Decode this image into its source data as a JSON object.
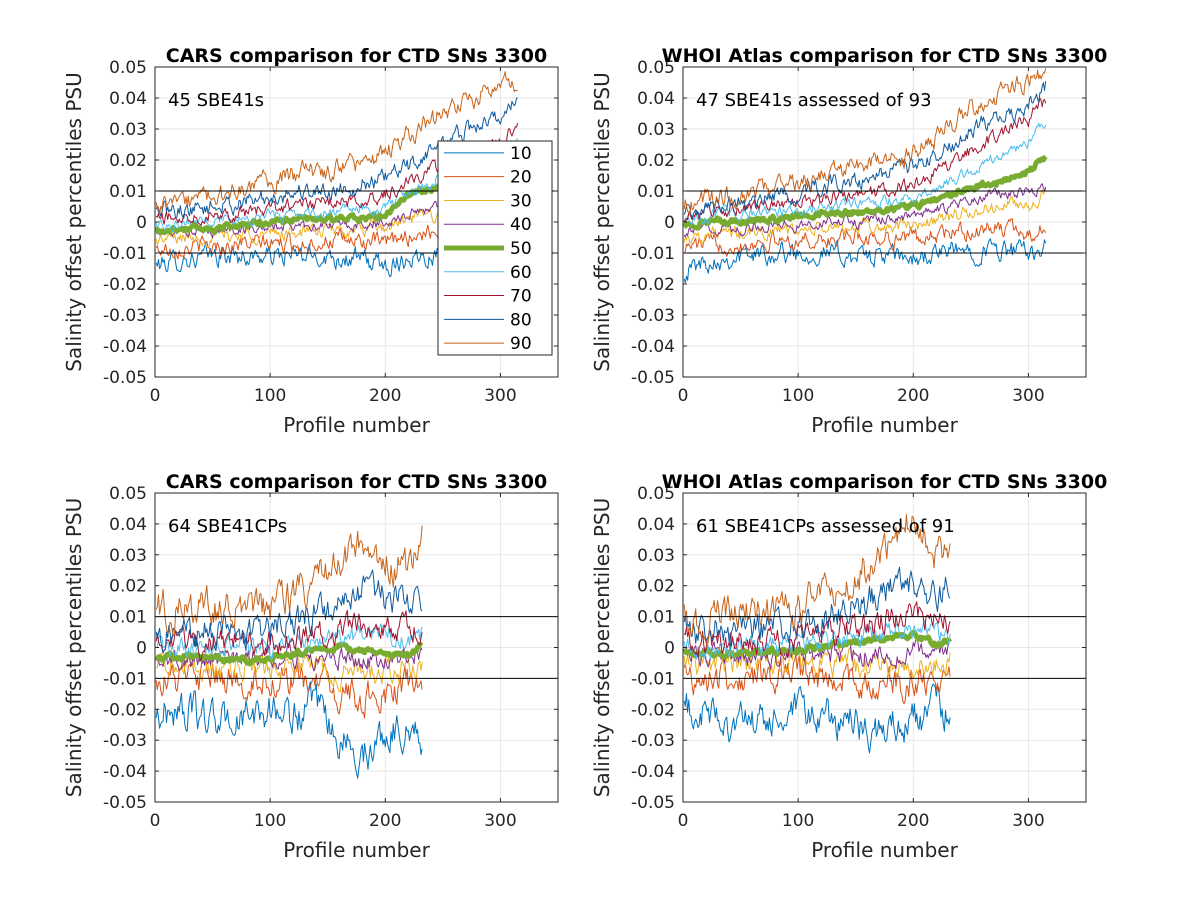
{
  "chart_data": [
    {
      "type": "line",
      "title": "CARS comparison for CTD SNs 3300",
      "xlabel": "Profile number",
      "ylabel": "Salinity offset percentiles PSU",
      "xlim": [
        0,
        350
      ],
      "ylim": [
        -0.05,
        0.05
      ],
      "xticks": [
        "0",
        "100",
        "200",
        "300"
      ],
      "yticks": [
        "-0.05",
        "-0.04",
        "-0.03",
        "-0.02",
        "-0.01",
        "0",
        "0.01",
        "0.02",
        "0.03",
        "0.04",
        "0.05"
      ],
      "reference_lines": [
        0.01,
        -0.01
      ],
      "annotation": "45 SBE41s",
      "grid": true,
      "legend": "right",
      "nprofiles": 315,
      "x": [
        0,
        25,
        50,
        75,
        100,
        125,
        150,
        175,
        200,
        225,
        250,
        275,
        300,
        315
      ],
      "series": [
        {
          "name": "10",
          "values": [
            -0.014,
            -0.012,
            -0.011,
            -0.011,
            -0.011,
            -0.011,
            -0.011,
            -0.012,
            -0.014,
            -0.011,
            -0.01,
            -0.009,
            -0.009,
            -0.009
          ]
        },
        {
          "name": "20",
          "values": [
            -0.009,
            -0.008,
            -0.008,
            -0.007,
            -0.007,
            -0.007,
            -0.006,
            -0.006,
            -0.007,
            -0.004,
            -0.003,
            -0.002,
            -0.002,
            -0.003
          ]
        },
        {
          "name": "30",
          "values": [
            -0.006,
            -0.005,
            -0.005,
            -0.004,
            -0.004,
            -0.003,
            -0.003,
            -0.003,
            -0.002,
            0.001,
            0.003,
            0.004,
            0.004,
            0.004
          ]
        },
        {
          "name": "40",
          "values": [
            -0.004,
            -0.003,
            -0.003,
            -0.002,
            -0.002,
            -0.001,
            -0.001,
            -0.001,
            0.0,
            0.003,
            0.006,
            0.008,
            0.009,
            0.009
          ]
        },
        {
          "name": "50",
          "values": [
            -0.003,
            -0.002,
            -0.002,
            -0.001,
            0.0,
            0.001,
            0.001,
            0.001,
            0.002,
            0.01,
            0.011,
            0.012,
            0.014,
            0.02
          ]
        },
        {
          "name": "60",
          "values": [
            -0.001,
            0.0,
            0.001,
            0.001,
            0.002,
            0.003,
            0.003,
            0.004,
            0.005,
            0.01,
            0.015,
            0.018,
            0.022,
            0.025
          ]
        },
        {
          "name": "70",
          "values": [
            0.001,
            0.002,
            0.003,
            0.003,
            0.004,
            0.006,
            0.006,
            0.007,
            0.009,
            0.014,
            0.018,
            0.022,
            0.026,
            0.032
          ]
        },
        {
          "name": "80",
          "values": [
            0.003,
            0.004,
            0.005,
            0.006,
            0.008,
            0.01,
            0.01,
            0.012,
            0.014,
            0.019,
            0.026,
            0.03,
            0.034,
            0.04
          ]
        },
        {
          "name": "90",
          "values": [
            0.005,
            0.006,
            0.008,
            0.01,
            0.013,
            0.016,
            0.016,
            0.019,
            0.022,
            0.029,
            0.035,
            0.04,
            0.044,
            0.046
          ]
        }
      ]
    },
    {
      "type": "line",
      "title": "WHOI Atlas comparison for CTD SNs 3300",
      "xlabel": "Profile number",
      "ylabel": "Salinity offset percentiles PSU",
      "xlim": [
        0,
        350
      ],
      "ylim": [
        -0.05,
        0.05
      ],
      "xticks": [
        "0",
        "100",
        "200",
        "300"
      ],
      "yticks": [
        "-0.05",
        "-0.04",
        "-0.03",
        "-0.02",
        "-0.01",
        "0",
        "0.01",
        "0.02",
        "0.03",
        "0.04",
        "0.05"
      ],
      "reference_lines": [
        0.01,
        -0.01
      ],
      "annotation": "47 SBE41s assessed of 93",
      "grid": true,
      "nprofiles": 315,
      "x": [
        0,
        25,
        50,
        75,
        100,
        125,
        150,
        175,
        200,
        225,
        250,
        275,
        300,
        315
      ],
      "series": [
        {
          "name": "10",
          "values": [
            -0.016,
            -0.012,
            -0.011,
            -0.01,
            -0.01,
            -0.01,
            -0.011,
            -0.011,
            -0.012,
            -0.01,
            -0.009,
            -0.009,
            -0.01,
            -0.007
          ]
        },
        {
          "name": "20",
          "values": [
            -0.008,
            -0.007,
            -0.007,
            -0.006,
            -0.006,
            -0.006,
            -0.005,
            -0.005,
            -0.005,
            -0.004,
            -0.003,
            -0.002,
            -0.004,
            -0.001
          ]
        },
        {
          "name": "30",
          "values": [
            -0.005,
            -0.004,
            -0.004,
            -0.003,
            -0.003,
            -0.002,
            -0.002,
            -0.002,
            -0.001,
            0.001,
            0.003,
            0.005,
            0.006,
            0.008
          ]
        },
        {
          "name": "40",
          "values": [
            -0.003,
            -0.002,
            -0.002,
            -0.001,
            -0.001,
            0.0,
            0.0,
            0.001,
            0.002,
            0.004,
            0.007,
            0.009,
            0.01,
            0.011
          ]
        },
        {
          "name": "50",
          "values": [
            -0.001,
            0.0,
            0.0,
            0.001,
            0.002,
            0.003,
            0.003,
            0.004,
            0.005,
            0.008,
            0.011,
            0.013,
            0.016,
            0.021
          ]
        },
        {
          "name": "60",
          "values": [
            0.001,
            0.002,
            0.003,
            0.003,
            0.004,
            0.005,
            0.006,
            0.007,
            0.008,
            0.012,
            0.017,
            0.021,
            0.026,
            0.033
          ]
        },
        {
          "name": "70",
          "values": [
            0.002,
            0.003,
            0.004,
            0.005,
            0.006,
            0.008,
            0.009,
            0.01,
            0.012,
            0.017,
            0.023,
            0.028,
            0.033,
            0.039
          ]
        },
        {
          "name": "80",
          "values": [
            0.004,
            0.005,
            0.006,
            0.008,
            0.01,
            0.012,
            0.013,
            0.015,
            0.018,
            0.023,
            0.029,
            0.034,
            0.038,
            0.044
          ]
        },
        {
          "name": "90",
          "values": [
            0.006,
            0.008,
            0.009,
            0.011,
            0.013,
            0.015,
            0.017,
            0.019,
            0.022,
            0.029,
            0.036,
            0.041,
            0.045,
            0.048
          ]
        }
      ]
    },
    {
      "type": "line",
      "title": "CARS comparison for CTD SNs 3300",
      "xlabel": "Profile number",
      "ylabel": "Salinity offset percentiles PSU",
      "xlim": [
        0,
        350
      ],
      "ylim": [
        -0.05,
        0.05
      ],
      "xticks": [
        "0",
        "100",
        "200",
        "300"
      ],
      "yticks": [
        "-0.05",
        "-0.04",
        "-0.03",
        "-0.02",
        "-0.01",
        "0",
        "0.01",
        "0.02",
        "0.03",
        "0.04",
        "0.05"
      ],
      "reference_lines": [
        0.01,
        -0.01
      ],
      "annotation": "64 SBE41CPs",
      "grid": true,
      "nprofiles": 232,
      "x": [
        0,
        20,
        40,
        60,
        80,
        100,
        120,
        140,
        160,
        180,
        200,
        220,
        232
      ],
      "series": [
        {
          "name": "10",
          "values": [
            -0.022,
            -0.02,
            -0.022,
            -0.024,
            -0.023,
            -0.02,
            -0.022,
            -0.02,
            -0.03,
            -0.035,
            -0.028,
            -0.025,
            -0.03
          ]
        },
        {
          "name": "20",
          "values": [
            -0.01,
            -0.01,
            -0.01,
            -0.011,
            -0.011,
            -0.01,
            -0.011,
            -0.011,
            -0.015,
            -0.017,
            -0.015,
            -0.012,
            -0.012
          ]
        },
        {
          "name": "30",
          "values": [
            -0.006,
            -0.006,
            -0.006,
            -0.006,
            -0.006,
            -0.006,
            -0.006,
            -0.006,
            -0.008,
            -0.009,
            -0.008,
            -0.007,
            -0.007
          ]
        },
        {
          "name": "40",
          "values": [
            -0.004,
            -0.004,
            -0.004,
            -0.004,
            -0.004,
            -0.003,
            -0.003,
            -0.003,
            -0.003,
            -0.004,
            -0.003,
            -0.003,
            -0.002
          ]
        },
        {
          "name": "50",
          "values": [
            -0.003,
            -0.003,
            -0.003,
            -0.004,
            -0.004,
            -0.003,
            -0.002,
            -0.001,
            0.0,
            -0.001,
            -0.002,
            -0.003,
            0.001
          ]
        },
        {
          "name": "60",
          "values": [
            0.0,
            0.0,
            0.0,
            0.0,
            0.0,
            0.0,
            0.001,
            0.002,
            0.003,
            0.004,
            0.004,
            0.003,
            0.004
          ]
        },
        {
          "name": "70",
          "values": [
            0.002,
            0.002,
            0.002,
            0.002,
            0.002,
            0.002,
            0.003,
            0.005,
            0.006,
            0.007,
            0.007,
            0.006,
            0.007
          ]
        },
        {
          "name": "80",
          "values": [
            0.005,
            0.005,
            0.005,
            0.005,
            0.005,
            0.006,
            0.008,
            0.01,
            0.014,
            0.018,
            0.016,
            0.015,
            0.017
          ]
        },
        {
          "name": "90",
          "values": [
            0.012,
            0.013,
            0.013,
            0.012,
            0.012,
            0.013,
            0.016,
            0.022,
            0.026,
            0.033,
            0.028,
            0.026,
            0.036
          ]
        }
      ]
    },
    {
      "type": "line",
      "title": "WHOI Atlas comparison for CTD SNs 3300",
      "xlabel": "Profile number",
      "ylabel": "Salinity offset percentiles PSU",
      "xlim": [
        0,
        350
      ],
      "ylim": [
        -0.05,
        0.05
      ],
      "xticks": [
        "0",
        "100",
        "200",
        "300"
      ],
      "yticks": [
        "-0.05",
        "-0.04",
        "-0.03",
        "-0.02",
        "-0.01",
        "0",
        "0.01",
        "0.02",
        "0.03",
        "0.04",
        "0.05"
      ],
      "reference_lines": [
        0.01,
        -0.01
      ],
      "annotation": "61 SBE41CPs assessed of 91",
      "grid": true,
      "nprofiles": 232,
      "x": [
        0,
        20,
        40,
        60,
        80,
        100,
        120,
        140,
        160,
        180,
        200,
        220,
        232
      ],
      "series": [
        {
          "name": "10",
          "values": [
            -0.02,
            -0.022,
            -0.024,
            -0.025,
            -0.024,
            -0.022,
            -0.023,
            -0.023,
            -0.028,
            -0.026,
            -0.024,
            -0.02,
            -0.021
          ]
        },
        {
          "name": "20",
          "values": [
            -0.009,
            -0.01,
            -0.01,
            -0.01,
            -0.01,
            -0.009,
            -0.01,
            -0.01,
            -0.012,
            -0.012,
            -0.011,
            -0.01,
            -0.009
          ]
        },
        {
          "name": "30",
          "values": [
            -0.005,
            -0.005,
            -0.005,
            -0.005,
            -0.005,
            -0.005,
            -0.005,
            -0.005,
            -0.006,
            -0.006,
            -0.005,
            -0.004,
            -0.004
          ]
        },
        {
          "name": "40",
          "values": [
            -0.003,
            -0.003,
            -0.003,
            -0.003,
            -0.003,
            -0.002,
            -0.002,
            -0.002,
            -0.002,
            -0.002,
            -0.001,
            -0.001,
            0.0
          ]
        },
        {
          "name": "50",
          "values": [
            -0.002,
            -0.002,
            -0.002,
            -0.002,
            -0.001,
            -0.001,
            0.0,
            0.001,
            0.002,
            0.003,
            0.004,
            0.001,
            0.002
          ]
        },
        {
          "name": "60",
          "values": [
            0.0,
            0.0,
            0.0,
            0.0,
            0.0,
            0.001,
            0.002,
            0.003,
            0.004,
            0.005,
            0.006,
            0.004,
            0.004
          ]
        },
        {
          "name": "70",
          "values": [
            0.002,
            0.002,
            0.002,
            0.002,
            0.002,
            0.003,
            0.004,
            0.006,
            0.008,
            0.01,
            0.01,
            0.008,
            0.009
          ]
        },
        {
          "name": "80",
          "values": [
            0.005,
            0.005,
            0.005,
            0.005,
            0.006,
            0.007,
            0.009,
            0.012,
            0.015,
            0.018,
            0.02,
            0.017,
            0.02
          ]
        },
        {
          "name": "90",
          "values": [
            0.01,
            0.01,
            0.01,
            0.01,
            0.01,
            0.012,
            0.015,
            0.02,
            0.026,
            0.034,
            0.045,
            0.03,
            0.028
          ]
        }
      ]
    }
  ],
  "series_colors": {
    "10": "#0072BD",
    "20": "#D95319",
    "30": "#EDB120",
    "40": "#7E2F8E",
    "50": "#77AC30",
    "60": "#4DBEEE",
    "70": "#A2142F",
    "80": "#0E5A9E",
    "90": "#C8641A"
  },
  "colors": {
    "axis": "#262626",
    "grid": "#e6e6e6",
    "reference_line": "#000000"
  }
}
